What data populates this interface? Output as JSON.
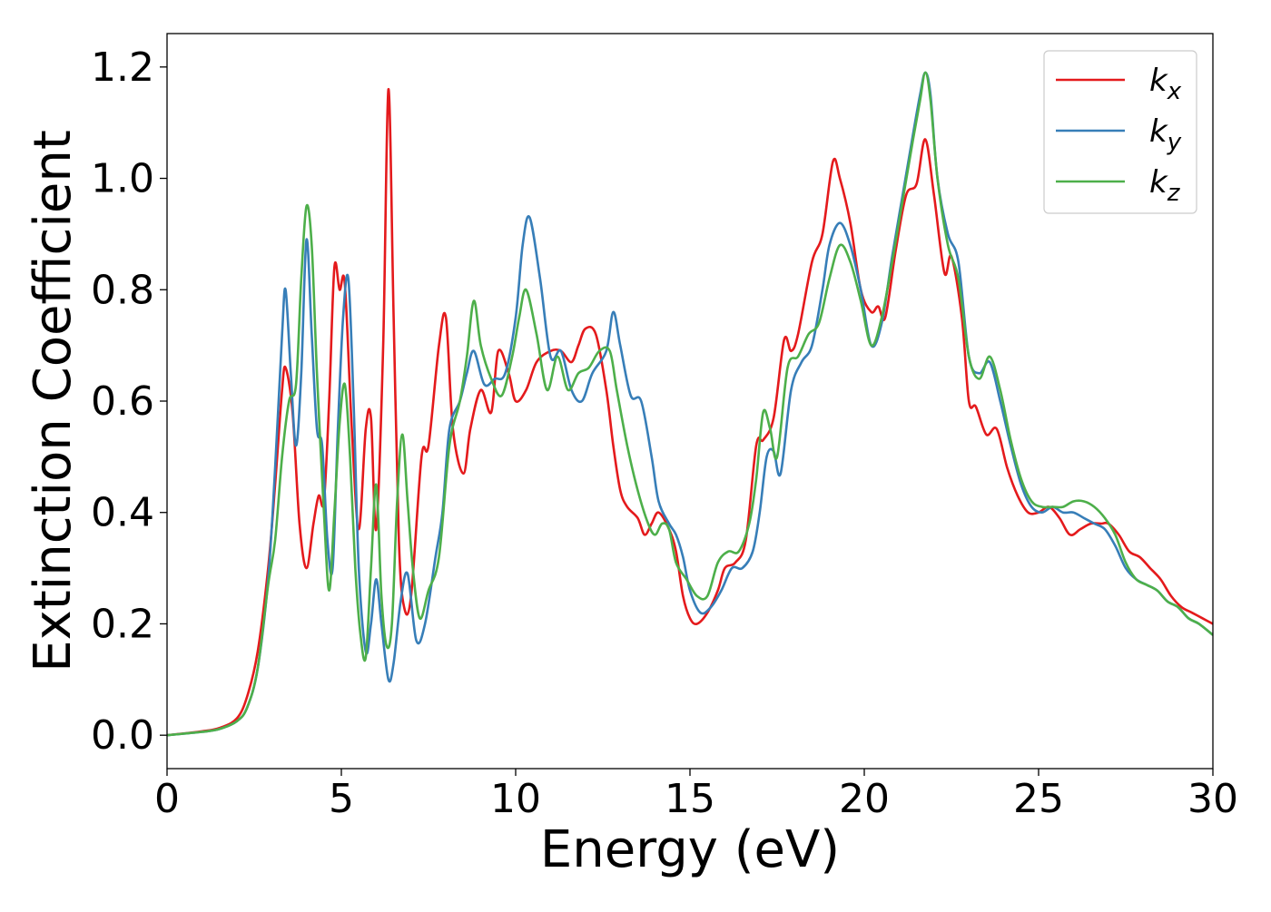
{
  "chart_data": {
    "type": "line",
    "title": "",
    "xlabel": "Energy (eV)",
    "ylabel": "Extinction Coefficient",
    "xlim": [
      0,
      30
    ],
    "ylim": [
      -0.06,
      1.26
    ],
    "xticks": [
      0,
      5,
      10,
      15,
      20,
      25,
      30
    ],
    "xtick_labels": [
      "0",
      "5",
      "10",
      "15",
      "20",
      "25",
      "30"
    ],
    "yticks": [
      0.0,
      0.2,
      0.4,
      0.6,
      0.8,
      1.0,
      1.2
    ],
    "ytick_labels": [
      "0.0",
      "0.2",
      "0.4",
      "0.6",
      "0.8",
      "1.0",
      "1.2"
    ],
    "grid": false,
    "legend_position": "top-right",
    "series": [
      {
        "name": "k_x",
        "legend_base": "k",
        "legend_sub": "x",
        "color": "#e41a1c",
        "x": [
          0,
          1,
          1.5,
          2,
          2.3,
          2.6,
          2.9,
          3.1,
          3.3,
          3.4,
          3.6,
          3.8,
          4.0,
          4.2,
          4.35,
          4.5,
          4.65,
          4.8,
          4.95,
          5.1,
          5.3,
          5.5,
          5.7,
          5.85,
          6.0,
          6.2,
          6.35,
          6.5,
          6.65,
          6.8,
          7.0,
          7.3,
          7.5,
          7.8,
          8.0,
          8.2,
          8.5,
          8.7,
          9.0,
          9.3,
          9.5,
          9.8,
          10.0,
          10.3,
          10.6,
          11.0,
          11.3,
          11.6,
          11.8,
          12.0,
          12.3,
          12.6,
          12.8,
          13.0,
          13.2,
          13.5,
          13.7,
          13.9,
          14.1,
          14.4,
          14.6,
          14.8,
          15.0,
          15.2,
          15.5,
          15.8,
          16.0,
          16.3,
          16.6,
          16.9,
          17.1,
          17.4,
          17.7,
          17.9,
          18.1,
          18.5,
          18.8,
          19.1,
          19.3,
          19.6,
          19.9,
          20.2,
          20.4,
          20.6,
          20.9,
          21.2,
          21.5,
          21.75,
          22.0,
          22.3,
          22.5,
          22.8,
          23.0,
          23.2,
          23.5,
          23.8,
          24.1,
          24.4,
          24.7,
          25.0,
          25.3,
          25.6,
          25.9,
          26.2,
          26.5,
          26.8,
          27.0,
          27.3,
          27.6,
          27.9,
          28.2,
          28.5,
          28.8,
          29.1,
          29.4,
          29.7,
          30.0
        ],
        "y": [
          0.0,
          0.007,
          0.013,
          0.03,
          0.07,
          0.15,
          0.3,
          0.45,
          0.62,
          0.66,
          0.58,
          0.38,
          0.3,
          0.38,
          0.43,
          0.42,
          0.6,
          0.84,
          0.8,
          0.81,
          0.55,
          0.37,
          0.55,
          0.57,
          0.37,
          0.7,
          1.16,
          0.75,
          0.35,
          0.23,
          0.25,
          0.5,
          0.52,
          0.7,
          0.75,
          0.55,
          0.47,
          0.55,
          0.62,
          0.58,
          0.69,
          0.65,
          0.6,
          0.62,
          0.67,
          0.69,
          0.69,
          0.67,
          0.7,
          0.73,
          0.72,
          0.62,
          0.52,
          0.44,
          0.41,
          0.39,
          0.36,
          0.38,
          0.4,
          0.37,
          0.33,
          0.25,
          0.21,
          0.2,
          0.22,
          0.26,
          0.3,
          0.31,
          0.35,
          0.52,
          0.53,
          0.57,
          0.71,
          0.69,
          0.72,
          0.85,
          0.9,
          1.03,
          1.0,
          0.92,
          0.8,
          0.76,
          0.77,
          0.75,
          0.87,
          0.97,
          0.99,
          1.07,
          0.97,
          0.83,
          0.86,
          0.75,
          0.6,
          0.59,
          0.54,
          0.55,
          0.48,
          0.43,
          0.4,
          0.4,
          0.41,
          0.39,
          0.36,
          0.37,
          0.38,
          0.38,
          0.38,
          0.36,
          0.33,
          0.32,
          0.3,
          0.28,
          0.25,
          0.23,
          0.22,
          0.21,
          0.2
        ]
      },
      {
        "name": "k_y",
        "legend_base": "k",
        "legend_sub": "y",
        "color": "#377eb8",
        "x": [
          0,
          1,
          1.5,
          2,
          2.3,
          2.6,
          2.9,
          3.1,
          3.3,
          3.4,
          3.55,
          3.7,
          3.85,
          4.0,
          4.15,
          4.3,
          4.45,
          4.6,
          4.75,
          4.9,
          5.05,
          5.2,
          5.35,
          5.5,
          5.7,
          5.85,
          6.0,
          6.15,
          6.35,
          6.5,
          6.7,
          6.9,
          7.15,
          7.4,
          7.7,
          7.9,
          8.1,
          8.4,
          8.6,
          8.8,
          9.1,
          9.4,
          9.7,
          10.0,
          10.2,
          10.4,
          10.7,
          11.0,
          11.3,
          11.6,
          11.9,
          12.2,
          12.6,
          12.8,
          13.0,
          13.3,
          13.6,
          13.9,
          14.1,
          14.4,
          14.6,
          14.8,
          15.0,
          15.3,
          15.6,
          15.9,
          16.2,
          16.5,
          16.8,
          17.0,
          17.2,
          17.4,
          17.6,
          17.9,
          18.2,
          18.5,
          18.8,
          19.0,
          19.3,
          19.6,
          19.9,
          20.2,
          20.5,
          20.8,
          21.1,
          21.4,
          21.6,
          21.75,
          21.9,
          22.1,
          22.4,
          22.7,
          23.0,
          23.3,
          23.6,
          23.9,
          24.2,
          24.5,
          24.8,
          25.1,
          25.4,
          25.7,
          26.0,
          26.3,
          26.6,
          26.9,
          27.2,
          27.5,
          27.8,
          28.1,
          28.4,
          28.7,
          29.0,
          29.3,
          29.6,
          30.0
        ],
        "y": [
          0.0,
          0.006,
          0.011,
          0.025,
          0.05,
          0.12,
          0.28,
          0.48,
          0.72,
          0.8,
          0.65,
          0.52,
          0.65,
          0.89,
          0.72,
          0.55,
          0.52,
          0.35,
          0.3,
          0.55,
          0.75,
          0.82,
          0.6,
          0.3,
          0.15,
          0.2,
          0.28,
          0.2,
          0.1,
          0.13,
          0.24,
          0.29,
          0.17,
          0.2,
          0.32,
          0.4,
          0.55,
          0.6,
          0.65,
          0.69,
          0.63,
          0.64,
          0.65,
          0.75,
          0.88,
          0.93,
          0.82,
          0.68,
          0.69,
          0.62,
          0.6,
          0.65,
          0.69,
          0.76,
          0.7,
          0.61,
          0.6,
          0.5,
          0.42,
          0.38,
          0.36,
          0.32,
          0.26,
          0.22,
          0.23,
          0.26,
          0.3,
          0.3,
          0.33,
          0.4,
          0.5,
          0.51,
          0.47,
          0.62,
          0.67,
          0.7,
          0.8,
          0.88,
          0.92,
          0.88,
          0.8,
          0.7,
          0.74,
          0.86,
          0.97,
          1.08,
          1.15,
          1.19,
          1.15,
          1.0,
          0.9,
          0.85,
          0.68,
          0.65,
          0.67,
          0.6,
          0.52,
          0.45,
          0.41,
          0.4,
          0.41,
          0.4,
          0.4,
          0.39,
          0.38,
          0.37,
          0.34,
          0.3,
          0.28,
          0.27,
          0.26,
          0.24,
          0.23,
          0.21,
          0.2,
          0.18
        ]
      },
      {
        "name": "k_z",
        "legend_base": "k",
        "legend_sub": "z",
        "color": "#4daf4a",
        "x": [
          0,
          1,
          1.5,
          2,
          2.3,
          2.6,
          2.9,
          3.1,
          3.3,
          3.5,
          3.7,
          3.85,
          4.0,
          4.15,
          4.3,
          4.5,
          4.65,
          4.8,
          4.95,
          5.1,
          5.25,
          5.4,
          5.55,
          5.7,
          5.85,
          6.0,
          6.15,
          6.3,
          6.45,
          6.6,
          6.75,
          6.9,
          7.05,
          7.25,
          7.5,
          7.8,
          8.1,
          8.4,
          8.6,
          8.8,
          9.0,
          9.3,
          9.6,
          9.9,
          10.1,
          10.3,
          10.6,
          10.9,
          11.2,
          11.5,
          11.8,
          12.1,
          12.4,
          12.7,
          12.9,
          13.2,
          13.5,
          13.8,
          14.0,
          14.2,
          14.4,
          14.6,
          14.9,
          15.2,
          15.5,
          15.8,
          16.1,
          16.4,
          16.7,
          16.9,
          17.1,
          17.3,
          17.5,
          17.8,
          18.1,
          18.4,
          18.7,
          19.0,
          19.3,
          19.6,
          19.9,
          20.2,
          20.5,
          20.8,
          21.1,
          21.4,
          21.6,
          21.75,
          21.9,
          22.1,
          22.4,
          22.7,
          23.0,
          23.3,
          23.6,
          23.9,
          24.2,
          24.5,
          24.8,
          25.1,
          25.4,
          25.7,
          26.0,
          26.3,
          26.6,
          26.9,
          27.2,
          27.5,
          27.8,
          28.1,
          28.4,
          28.7,
          29.0,
          29.3,
          29.6,
          30.0
        ],
        "y": [
          0.0,
          0.006,
          0.011,
          0.025,
          0.05,
          0.12,
          0.27,
          0.35,
          0.5,
          0.6,
          0.63,
          0.82,
          0.95,
          0.88,
          0.65,
          0.4,
          0.26,
          0.4,
          0.56,
          0.63,
          0.5,
          0.3,
          0.18,
          0.14,
          0.3,
          0.45,
          0.25,
          0.16,
          0.2,
          0.42,
          0.54,
          0.42,
          0.3,
          0.21,
          0.26,
          0.32,
          0.52,
          0.6,
          0.68,
          0.78,
          0.7,
          0.64,
          0.61,
          0.68,
          0.75,
          0.8,
          0.72,
          0.62,
          0.68,
          0.62,
          0.65,
          0.66,
          0.69,
          0.69,
          0.62,
          0.52,
          0.44,
          0.38,
          0.36,
          0.38,
          0.37,
          0.31,
          0.28,
          0.25,
          0.25,
          0.31,
          0.33,
          0.33,
          0.38,
          0.46,
          0.58,
          0.55,
          0.5,
          0.66,
          0.68,
          0.72,
          0.74,
          0.82,
          0.88,
          0.85,
          0.78,
          0.7,
          0.75,
          0.85,
          0.96,
          1.07,
          1.14,
          1.19,
          1.14,
          1.0,
          0.88,
          0.82,
          0.68,
          0.64,
          0.68,
          0.62,
          0.53,
          0.46,
          0.42,
          0.41,
          0.41,
          0.41,
          0.42,
          0.42,
          0.41,
          0.39,
          0.36,
          0.31,
          0.28,
          0.27,
          0.26,
          0.24,
          0.23,
          0.21,
          0.2,
          0.18
        ]
      }
    ]
  }
}
